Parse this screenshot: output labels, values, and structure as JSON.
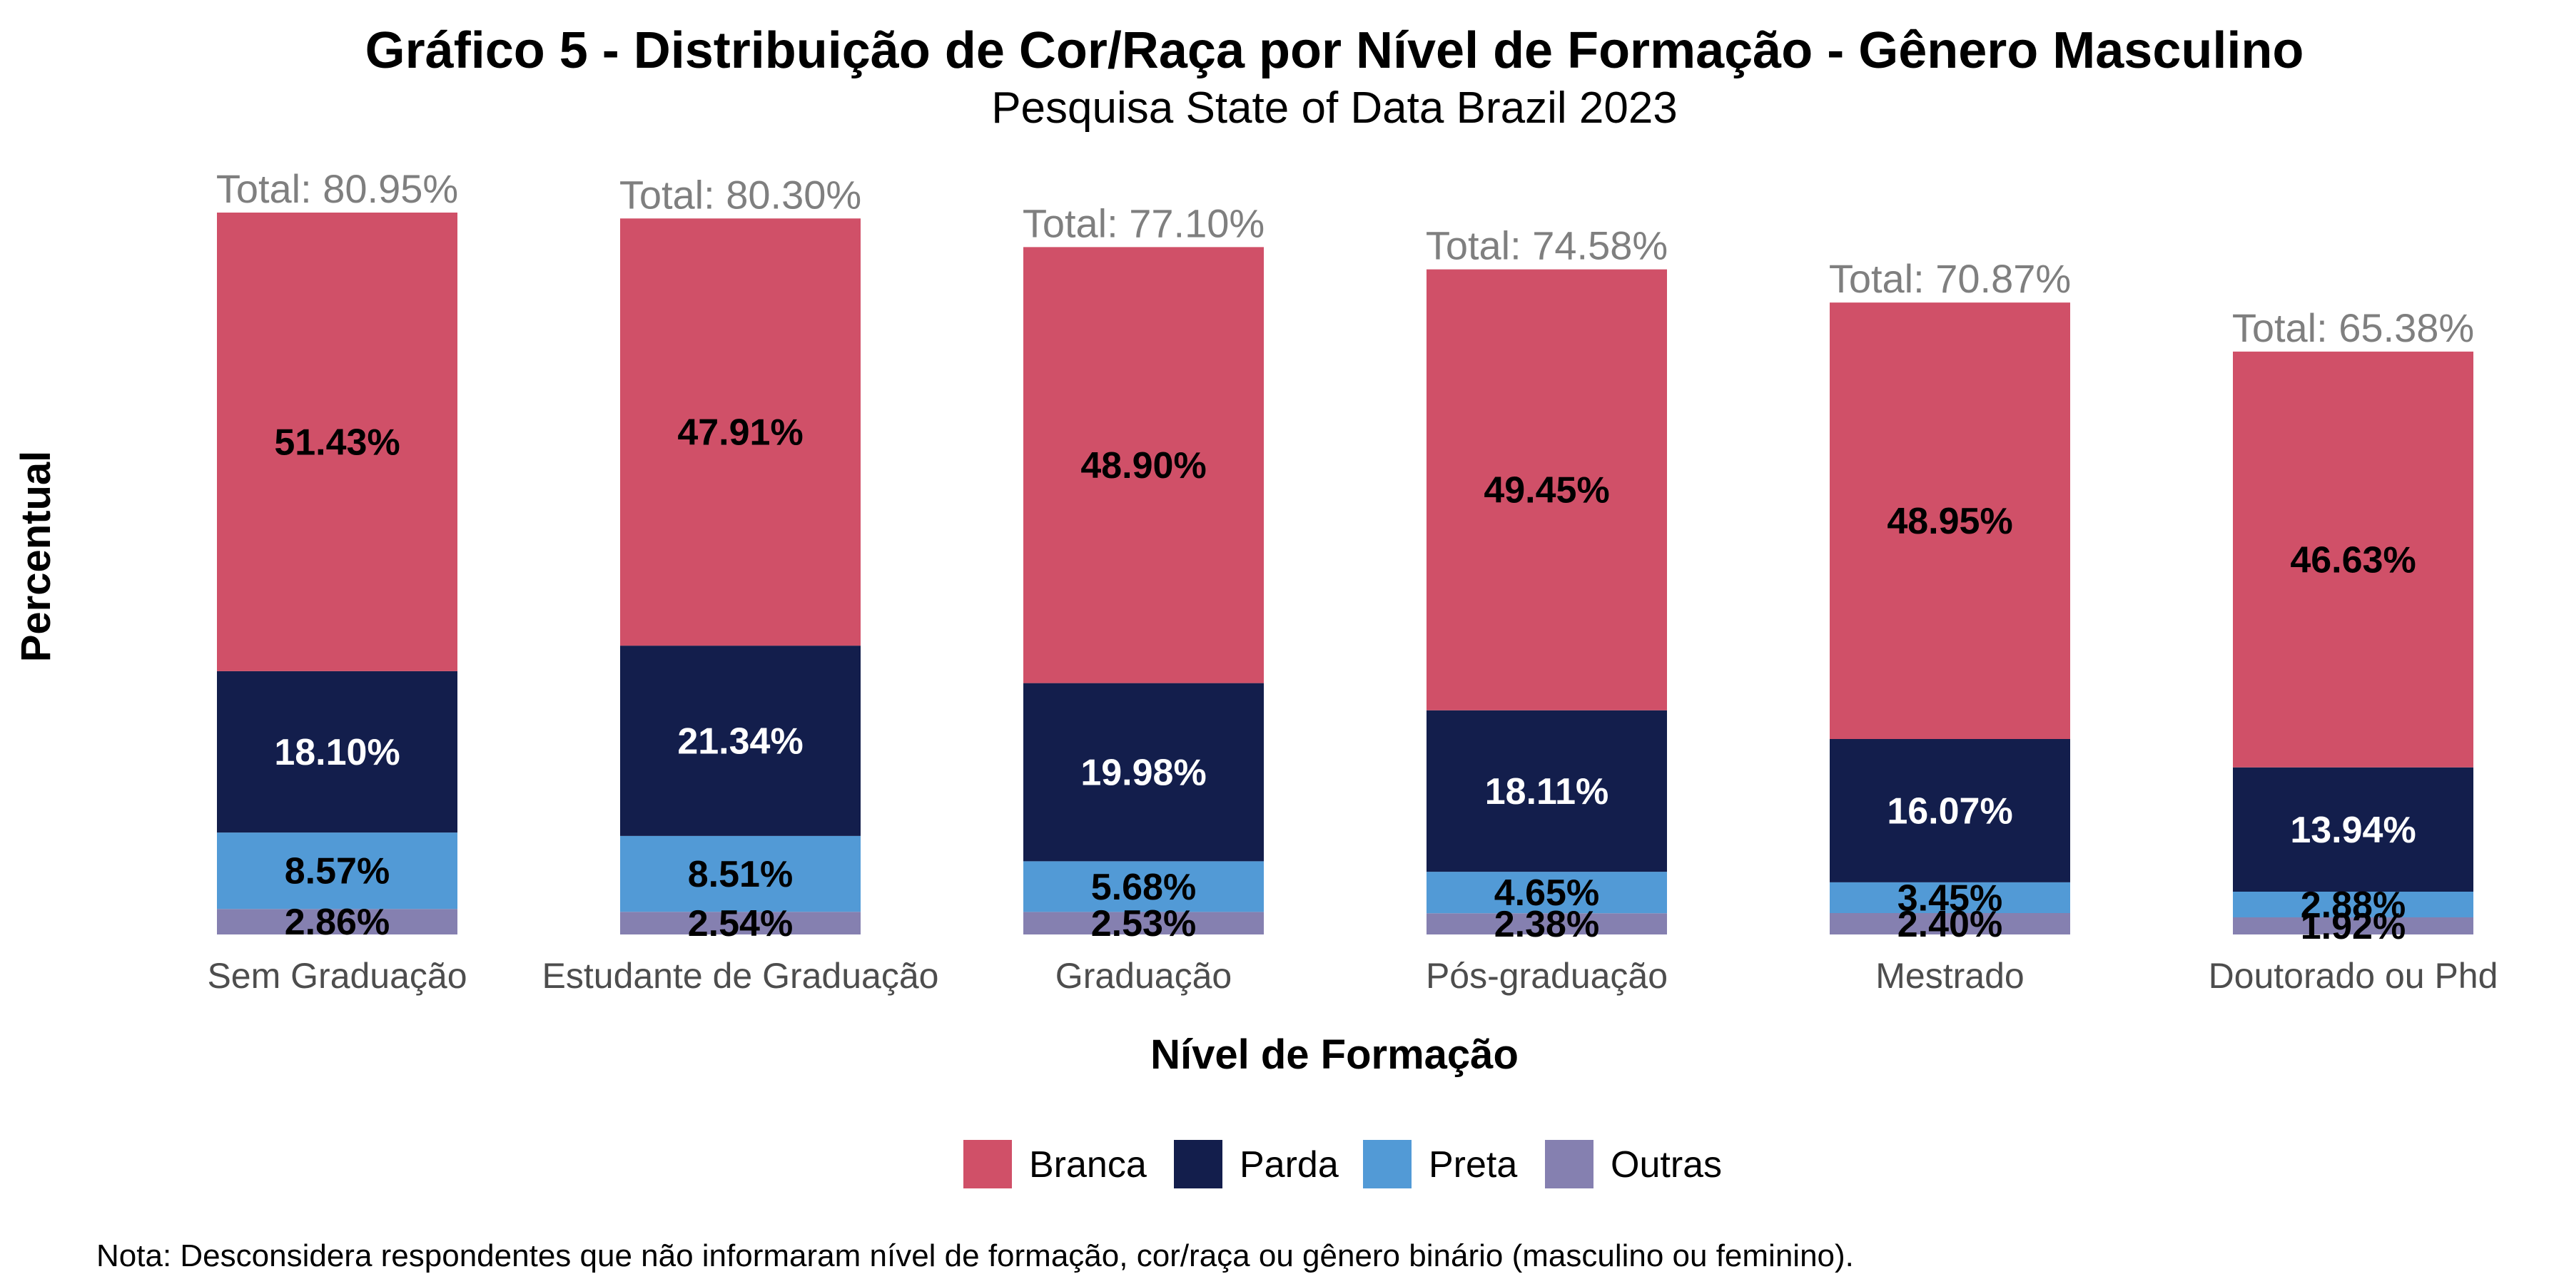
{
  "chart_data": {
    "type": "bar",
    "stacked": true,
    "title": "Gráfico 5 - Distribuição de Cor/Raça por Nível de Formação - Gênero Masculino",
    "subtitle": "Pesquisa State of Data Brazil 2023",
    "xlabel": "Nível de Formação",
    "ylabel": "Percentual",
    "ylim": [
      0,
      82
    ],
    "grid": false,
    "legend_position": "bottom",
    "categories": [
      "Sem Graduação",
      "Estudante de Graduação",
      "Graduação",
      "Pós-graduação",
      "Mestrado",
      "Doutorado ou Phd"
    ],
    "series": [
      {
        "name": "Outras",
        "color": "#8580b0",
        "label_color": "#000000",
        "values": [
          2.86,
          2.54,
          2.53,
          2.38,
          2.4,
          1.92
        ],
        "labels": [
          "2.86%",
          "2.54%",
          "2.53%",
          "2.38%",
          "2.40%",
          "1.92%"
        ]
      },
      {
        "name": "Preta",
        "color": "#529ad6",
        "label_color": "#000000",
        "values": [
          8.57,
          8.51,
          5.68,
          4.65,
          3.45,
          2.88
        ],
        "labels": [
          "8.57%",
          "8.51%",
          "5.68%",
          "4.65%",
          "3.45%",
          "2.88%"
        ]
      },
      {
        "name": "Parda",
        "color": "#131e4c",
        "label_color": "#ffffff",
        "values": [
          18.1,
          21.34,
          19.98,
          18.11,
          16.07,
          13.94
        ],
        "labels": [
          "18.10%",
          "21.34%",
          "19.98%",
          "18.11%",
          "16.07%",
          "13.94%"
        ]
      },
      {
        "name": "Branca",
        "color": "#d05068",
        "label_color": "#000000",
        "values": [
          51.43,
          47.91,
          48.9,
          49.45,
          48.95,
          46.63
        ],
        "labels": [
          "51.43%",
          "47.91%",
          "48.90%",
          "49.45%",
          "48.95%",
          "46.63%"
        ]
      }
    ],
    "totals": [
      "Total: 80.95%",
      "Total: 80.30%",
      "Total: 77.10%",
      "Total: 74.58%",
      "Total: 70.87%",
      "Total: 65.38%"
    ],
    "legend_order": [
      "Branca",
      "Parda",
      "Preta",
      "Outras"
    ],
    "note": "Nota: Desconsidera respondentes que não informaram nível de formação, cor/raça ou gênero binário (masculino ou feminino)."
  }
}
